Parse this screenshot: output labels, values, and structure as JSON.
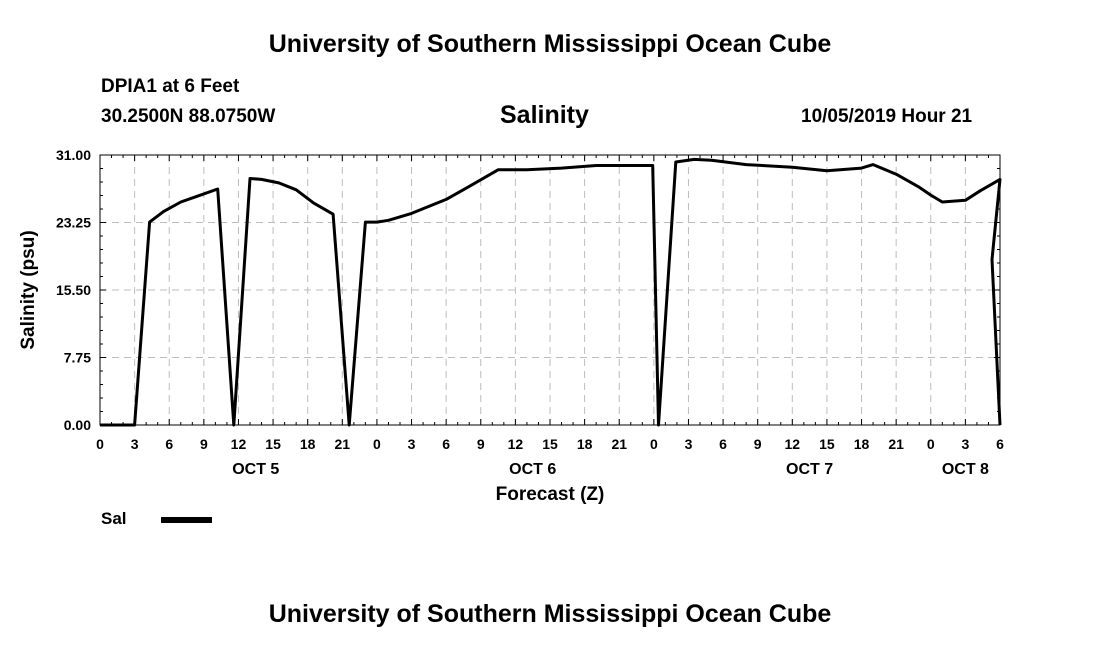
{
  "header": {
    "title_top": "University of Southern Mississippi Ocean Cube",
    "station": "DPIA1 at 6 Feet",
    "coords": "30.2500N 88.0750W",
    "chart_title": "Salinity",
    "datetime": "10/05/2019 Hour 21",
    "title_bottom": "University of Southern Mississippi Ocean Cube"
  },
  "legend": {
    "label": "Sal",
    "color": "#000000"
  },
  "chart_data": {
    "type": "line",
    "title": "Salinity",
    "ylabel": "Salinity (psu)",
    "xlabel": "Forecast (Z)",
    "ylim": [
      0,
      31
    ],
    "yticks": [
      "0.00",
      "7.75",
      "15.50",
      "23.25",
      "31.00"
    ],
    "xlim_hours": [
      0,
      78
    ],
    "xtick_labels": [
      "0",
      "3",
      "6",
      "9",
      "12",
      "15",
      "18",
      "21",
      "0",
      "3",
      "6",
      "9",
      "12",
      "15",
      "18",
      "21",
      "0",
      "3",
      "6",
      "9",
      "12",
      "15",
      "18",
      "21",
      "0",
      "3",
      "6"
    ],
    "date_labels": [
      {
        "label": "OCT 5",
        "hour": 13.5
      },
      {
        "label": "OCT 6",
        "hour": 37.5
      },
      {
        "label": "OCT 7",
        "hour": 61.5
      },
      {
        "label": "OCT 8",
        "hour": 75
      }
    ],
    "grid": true,
    "series": [
      {
        "name": "Sal",
        "color": "#000000",
        "x": [
          0,
          1,
          2,
          3,
          4.3,
          5.5,
          7,
          8.5,
          10.2,
          11.6,
          13,
          14,
          15.5,
          17,
          18.5,
          20.2,
          21.6,
          23,
          24,
          25,
          27,
          30,
          32,
          34.5,
          37,
          40,
          43,
          46,
          47.9,
          48.4,
          49.9,
          51.5,
          53,
          56,
          60,
          63,
          66,
          67,
          69,
          71,
          72,
          73,
          75,
          76.3,
          78
        ],
        "values": [
          0,
          0,
          0,
          0,
          23.3,
          24.5,
          25.6,
          26.3,
          27.1,
          0,
          28.3,
          28.2,
          27.8,
          27.0,
          25.5,
          24.2,
          0,
          23.3,
          23.3,
          23.5,
          24.3,
          25.9,
          27.4,
          29.3,
          29.3,
          29.5,
          29.8,
          29.8,
          29.8,
          0,
          30.2,
          30.5,
          30.4,
          29.9,
          29.6,
          29.2,
          29.5,
          29.9,
          28.8,
          27.3,
          26.4,
          25.6,
          25.8,
          26.9,
          28.2
        ]
      }
    ],
    "series_tail": {
      "x": [
        78.6,
        79.2,
        78.0
      ],
      "values": [
        19.0,
        0,
        0
      ]
    },
    "legend_position": "bottom-left"
  }
}
